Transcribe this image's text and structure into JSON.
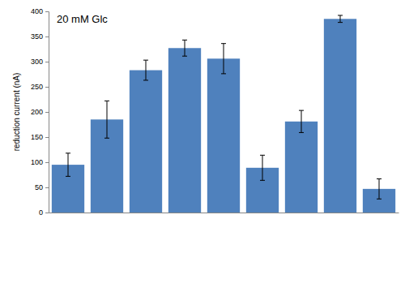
{
  "chart_data": {
    "type": "bar",
    "annotation": "20 mM Glc",
    "y_label": "reduction current (nA)",
    "categories": [
      null,
      null,
      null,
      null,
      null,
      null,
      null,
      null,
      null
    ],
    "values": [
      95,
      185,
      283,
      327,
      306,
      89,
      181,
      385,
      47
    ],
    "errors": [
      23,
      37,
      20,
      16,
      30,
      25,
      22,
      7,
      20
    ],
    "color": "#4f81bd",
    "ylim": [
      0,
      400
    ],
    "yticks": [
      0,
      50,
      100,
      150,
      200,
      250,
      300,
      350,
      400
    ],
    "grid": false
  }
}
